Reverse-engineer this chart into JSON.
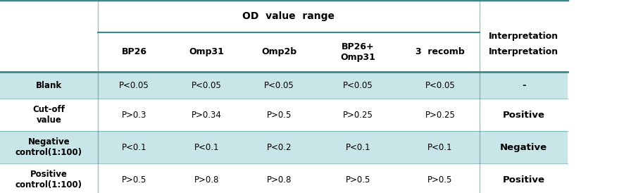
{
  "header_group": "OD  value  range",
  "col_headers": [
    "BP26",
    "Omp31",
    "Omp2b",
    "BP26+\nOmp31",
    "3  recomb",
    "Interpretation"
  ],
  "row_headers": [
    "Blank",
    "Cut-off\nvalue",
    "Negative\ncontrol(1:100)",
    "Positive\ncontrol(1:100)"
  ],
  "data": [
    [
      "P<0.05",
      "P<0.05",
      "P<0.05",
      "P<0.05",
      "P<0.05",
      "-"
    ],
    [
      "P>0.3",
      "P>0.34",
      "P>0.5",
      "P>0.25",
      "P>0.25",
      "Positive"
    ],
    [
      "P<0.1",
      "P<0.1",
      "P<0.2",
      "P<0.1",
      "P<0.1",
      "Negative"
    ],
    [
      "P>0.5",
      "P>0.8",
      "P>0.8",
      "P>0.5",
      "P>0.5",
      "Positive"
    ]
  ],
  "teal_dark": "#3a8a8c",
  "teal_light": "#c8e6e8",
  "white": "#ffffff",
  "header_bg": "#e8f4f5",
  "text_color": "#000000",
  "bold_col_indices": [
    5
  ],
  "bold_row_indices": [
    0,
    1,
    2,
    3
  ]
}
